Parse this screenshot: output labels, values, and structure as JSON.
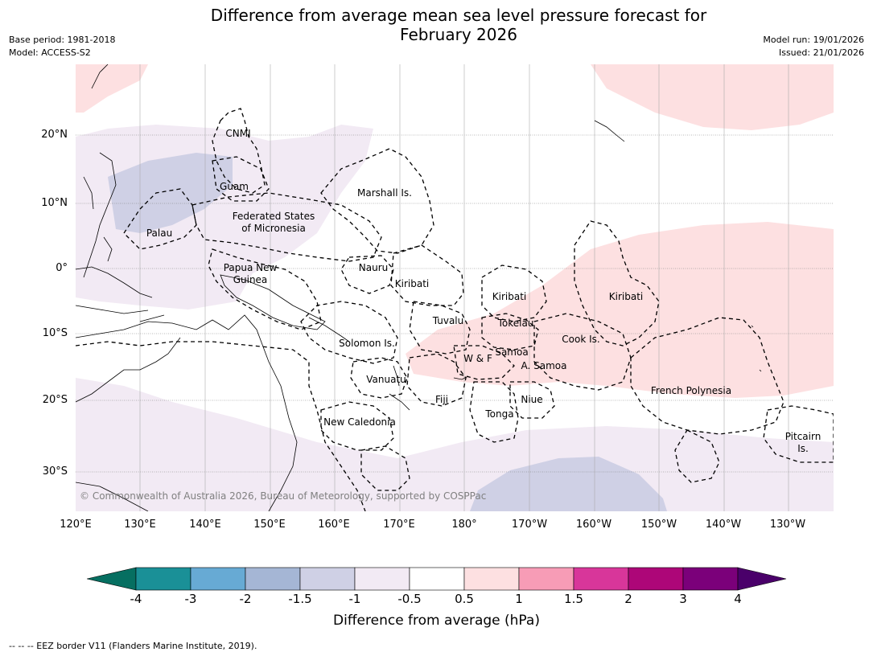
{
  "title": {
    "line1": "Difference from average mean sea level pressure forecast for",
    "line2": "February 2026"
  },
  "meta": {
    "base_period": "Base period: 1981-2018",
    "model": "Model: ACCESS-S2",
    "model_run": "Model run: 19/01/2026",
    "issued": "Issued: 21/01/2026"
  },
  "latitude_labels": [
    "20°N",
    "10°N",
    "0°",
    "10°S",
    "20°S",
    "30°S"
  ],
  "longitude_labels": [
    "120°E",
    "130°E",
    "140°E",
    "150°E",
    "160°E",
    "170°E",
    "180°",
    "170°W",
    "160°W",
    "150°W",
    "140°W",
    "130°W"
  ],
  "regions": [
    {
      "name": "CNMI"
    },
    {
      "name": "Guam"
    },
    {
      "name": "Marshall Is."
    },
    {
      "name": "Federated States"
    },
    {
      "name": "of Micronesia"
    },
    {
      "name": "Palau"
    },
    {
      "name": "Papua New"
    },
    {
      "name": "Guinea"
    },
    {
      "name": "Nauru"
    },
    {
      "name": "Kiribati"
    },
    {
      "name": "Kiribati"
    },
    {
      "name": "Kiribati"
    },
    {
      "name": "Tuvalu"
    },
    {
      "name": "Tokelau"
    },
    {
      "name": "Solomon Is."
    },
    {
      "name": "Samoa"
    },
    {
      "name": "W & F"
    },
    {
      "name": "A. Samoa"
    },
    {
      "name": "Cook Is."
    },
    {
      "name": "Vanuatu"
    },
    {
      "name": "Fiji"
    },
    {
      "name": "Niue"
    },
    {
      "name": "Tonga"
    },
    {
      "name": "French Polynesia"
    },
    {
      "name": "New Caledonia"
    },
    {
      "name": "Pitcairn"
    },
    {
      "name": "Is."
    }
  ],
  "copyright": "© Commonwealth of Australia 2026, Bureau of Meteorology, supported by COSPPac",
  "colorbar": {
    "ticks": [
      "-4",
      "-3",
      "-2",
      "-1.5",
      "-1",
      "-0.5",
      "0.5",
      "1",
      "1.5",
      "2",
      "3",
      "4"
    ],
    "colors": [
      "#1a9097",
      "#67aad4",
      "#a5b6d5",
      "#cfd0e5",
      "#f2eaf4",
      "#ffffff",
      "#fde0e1",
      "#f79cb6",
      "#d8369a",
      "#ad0678",
      "#7b007a"
    ],
    "under_color": "#066f61",
    "over_color": "#4a006a",
    "label": "Difference from average (hPa)"
  },
  "footer": "--  --  -- EEZ border V11 (Flanders Marine Institute, 2019)."
}
